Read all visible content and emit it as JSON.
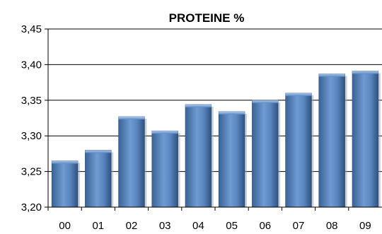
{
  "chart_data": {
    "type": "bar",
    "title": "PROTEINE %",
    "xlabel": "",
    "ylabel": "",
    "categories": [
      "00",
      "01",
      "02",
      "03",
      "04",
      "05",
      "06",
      "07",
      "08",
      "09"
    ],
    "values": [
      3.265,
      3.28,
      3.327,
      3.307,
      3.344,
      3.334,
      3.35,
      3.36,
      3.387,
      3.391
    ],
    "ylim": [
      3.2,
      3.45
    ],
    "yticks": [
      "3,20",
      "3,25",
      "3,30",
      "3,35",
      "3,40",
      "3,45"
    ],
    "grid": "horizontal",
    "legend": "none",
    "colors": {
      "bar": "#4f81bd",
      "bar_light": "#8db3e2",
      "bar_dark": "#2c4d75",
      "grid": "#000000"
    }
  }
}
